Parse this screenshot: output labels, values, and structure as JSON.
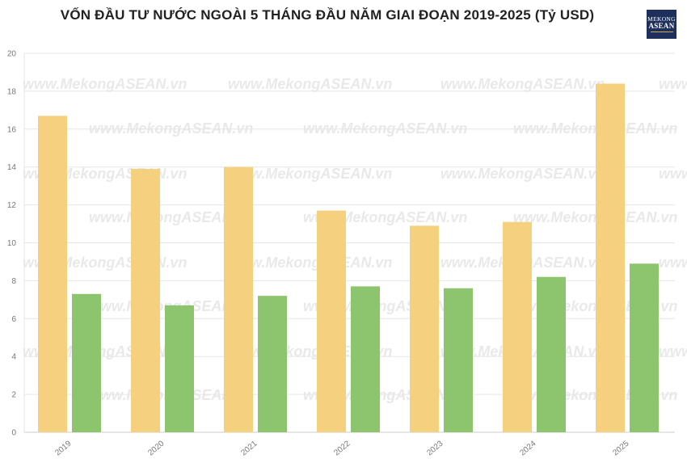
{
  "chart_data": {
    "type": "bar",
    "title": "VỐN ĐẦU TƯ NƯỚC NGOÀI 5 THÁNG ĐẦU NĂM GIAI ĐOẠN 2019-2025 (Tỷ USD)",
    "xlabel": "",
    "ylabel": "",
    "categories": [
      "2019",
      "2020",
      "2021",
      "2022",
      "2023",
      "2024",
      "2025"
    ],
    "series": [
      {
        "values": [
          16.7,
          13.9,
          14.0,
          11.7,
          10.9,
          11.1,
          18.4
        ],
        "color": "#f5d07e"
      },
      {
        "values": [
          7.3,
          6.7,
          7.2,
          7.7,
          7.6,
          8.2,
          8.9
        ],
        "color": "#8dc56f"
      }
    ],
    "ylim": [
      0,
      20
    ],
    "yticks": [
      0,
      2,
      4,
      6,
      8,
      10,
      12,
      14,
      16,
      18,
      20
    ],
    "grid": true,
    "legend": "none"
  },
  "logo": {
    "line1": "MEKONG",
    "line2": "ASEAN"
  },
  "watermark": "www.MekongASEAN.vn",
  "colors": {
    "grid": "#e6e6e6",
    "axis": "#cccccc",
    "title": "#222222"
  }
}
